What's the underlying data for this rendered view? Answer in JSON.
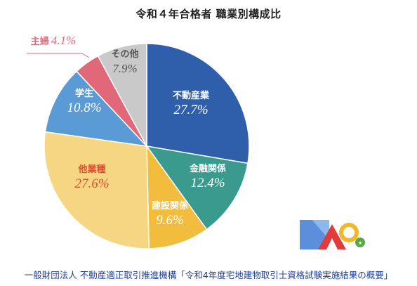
{
  "title": "令和４年合格者 職業別構成比",
  "source": "一般財団法人 不動産適正取引推進機構「令和4年度宅地建物取引士資格試験実施結果の概要」",
  "colors": {
    "fudosan": "#2f5eab",
    "kinyu": "#3a9a8e",
    "kensetsu": "#f2bc3c",
    "tagyoshu": "#f5d682",
    "gakusei": "#5b9bd5",
    "shufu": "#e06878",
    "sonota": "#c9c9c9"
  },
  "chart_data": {
    "type": "pie",
    "title": "令和４年合格者 職業別構成比",
    "slices": [
      {
        "label": "不動産業",
        "value": 27.7,
        "display": "27.7%"
      },
      {
        "label": "金融関係",
        "value": 12.4,
        "display": "12.4%"
      },
      {
        "label": "建設関係",
        "value": 9.6,
        "display": "9.6%"
      },
      {
        "label": "他業種",
        "value": 27.6,
        "display": "27.6%"
      },
      {
        "label": "学生",
        "value": 10.8,
        "display": "10.8%"
      },
      {
        "label": "主婦",
        "value": 4.1,
        "display": "4.1%"
      },
      {
        "label": "その他",
        "value": 7.9,
        "display": "7.9%"
      }
    ],
    "start": "12 o'clock",
    "direction": "clockwise"
  }
}
